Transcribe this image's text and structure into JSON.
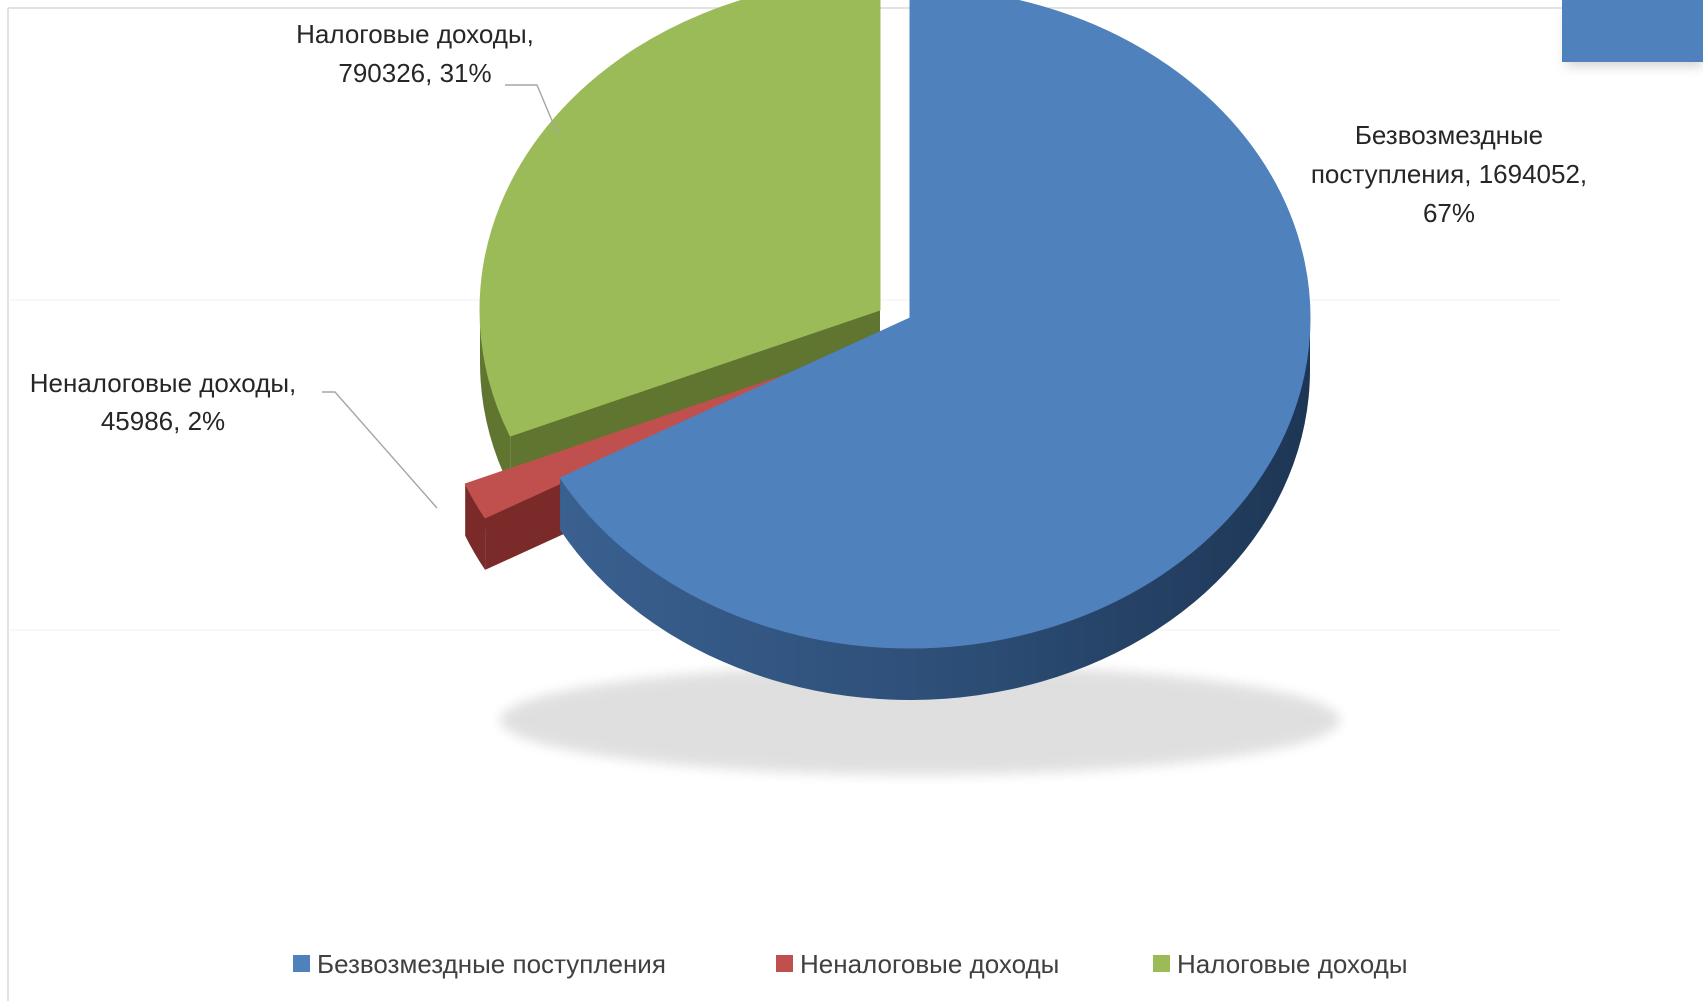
{
  "chart_data": {
    "type": "pie",
    "style": "3d-exploded",
    "categories": [
      "Безвозмездные поступления",
      "Неналоговые доходы",
      "Налоговые доходы"
    ],
    "values": [
      1694052,
      45986,
      790326
    ],
    "percents": [
      "67%",
      "2%",
      "31%"
    ],
    "data_labels": [
      [
        "Безвозмездные",
        "поступления, 1694052,",
        "67%"
      ],
      [
        "Неналоговые доходы,",
        "45986, 2%"
      ],
      [
        "Налоговые доходы,",
        "790326, 31%"
      ]
    ],
    "colors": [
      "#4f81bd",
      "#c0504d",
      "#9bbb59"
    ],
    "side_colors": [
      "#2c4d75",
      "#7a2b29",
      "#5f7530"
    ],
    "legend_position": "bottom",
    "legend": [
      "Безвозмездные поступления",
      "Неналоговые доходы",
      "Налоговые доходы"
    ]
  },
  "decor": {
    "corner_tab_color": "#4f81bd"
  }
}
